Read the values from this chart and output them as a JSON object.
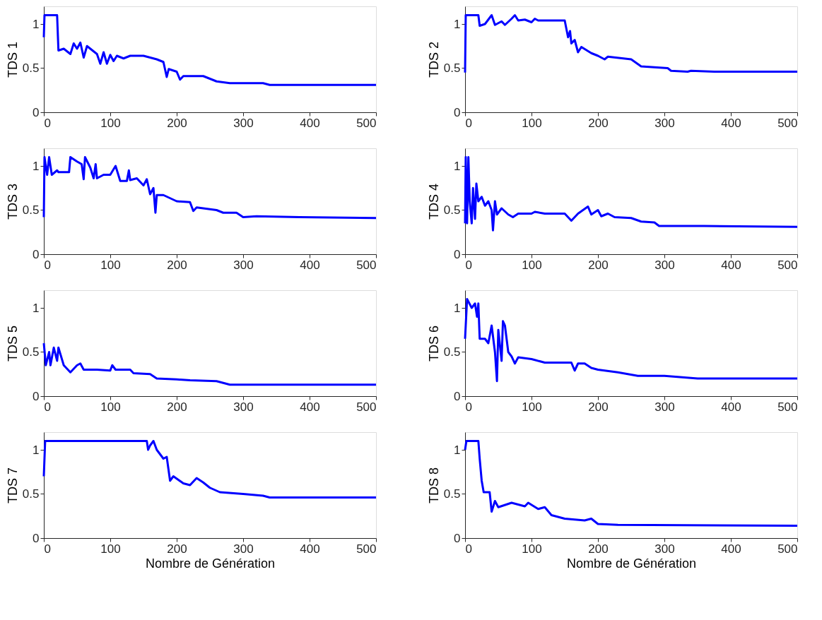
{
  "chart_data": [
    {
      "type": "line",
      "line_style": "solid",
      "ylabel": "TDS 1",
      "color": "#0000ff",
      "xlim": [
        0,
        500
      ],
      "ylim": [
        0,
        1.2
      ],
      "xticks": [
        0,
        100,
        200,
        300,
        400,
        500
      ],
      "yticks": [
        0,
        0.5,
        1
      ],
      "x": [
        0,
        1,
        20,
        22,
        30,
        40,
        45,
        50,
        55,
        60,
        65,
        70,
        80,
        85,
        90,
        95,
        100,
        105,
        110,
        120,
        130,
        150,
        160,
        170,
        180,
        185,
        188,
        200,
        205,
        210,
        240,
        260,
        280,
        330,
        340,
        500
      ],
      "values": [
        0.85,
        1.1,
        1.1,
        0.7,
        0.72,
        0.66,
        0.78,
        0.72,
        0.79,
        0.62,
        0.75,
        0.72,
        0.66,
        0.55,
        0.68,
        0.55,
        0.65,
        0.58,
        0.64,
        0.61,
        0.64,
        0.64,
        0.62,
        0.6,
        0.57,
        0.4,
        0.49,
        0.46,
        0.37,
        0.41,
        0.41,
        0.35,
        0.33,
        0.33,
        0.31,
        0.31
      ]
    },
    {
      "type": "line",
      "line_style": "solid",
      "ylabel": "TDS 2",
      "color": "#0000ff",
      "xlim": [
        0,
        500
      ],
      "ylim": [
        0,
        1.2
      ],
      "xticks": [
        0,
        100,
        200,
        300,
        400,
        500
      ],
      "yticks": [
        0,
        0.5,
        1
      ],
      "x": [
        0,
        1,
        20,
        22,
        30,
        40,
        45,
        55,
        60,
        70,
        75,
        80,
        90,
        100,
        105,
        110,
        150,
        155,
        158,
        160,
        165,
        170,
        175,
        190,
        200,
        210,
        215,
        250,
        265,
        305,
        310,
        335,
        340,
        375,
        500
      ],
      "values": [
        0.45,
        1.1,
        1.1,
        0.98,
        1.0,
        1.1,
        0.99,
        1.03,
        0.99,
        1.06,
        1.1,
        1.04,
        1.05,
        1.02,
        1.06,
        1.04,
        1.04,
        0.85,
        0.92,
        0.78,
        0.82,
        0.68,
        0.74,
        0.67,
        0.64,
        0.6,
        0.63,
        0.6,
        0.52,
        0.5,
        0.47,
        0.46,
        0.47,
        0.46,
        0.46
      ]
    },
    {
      "type": "line",
      "line_style": "solid",
      "ylabel": "TDS 3",
      "color": "#0000ff",
      "xlim": [
        0,
        500
      ],
      "ylim": [
        0,
        1.2
      ],
      "xticks": [
        0,
        100,
        200,
        300,
        400,
        500
      ],
      "yticks": [
        0,
        0.5,
        1
      ],
      "x": [
        0,
        1,
        5,
        8,
        12,
        20,
        22,
        38,
        40,
        50,
        57,
        60,
        62,
        70,
        75,
        78,
        80,
        90,
        100,
        108,
        115,
        125,
        128,
        130,
        140,
        150,
        155,
        160,
        165,
        168,
        170,
        180,
        200,
        220,
        225,
        230,
        260,
        270,
        290,
        300,
        320,
        385,
        500
      ],
      "values": [
        0.42,
        1.1,
        0.9,
        1.1,
        0.9,
        0.95,
        0.93,
        0.93,
        1.1,
        1.05,
        1.02,
        0.85,
        1.1,
        0.98,
        0.86,
        1.02,
        0.86,
        0.9,
        0.9,
        1.0,
        0.83,
        0.83,
        0.95,
        0.84,
        0.86,
        0.78,
        0.85,
        0.68,
        0.75,
        0.47,
        0.67,
        0.67,
        0.6,
        0.59,
        0.49,
        0.53,
        0.5,
        0.47,
        0.47,
        0.42,
        0.43,
        0.42,
        0.41
      ]
    },
    {
      "type": "line",
      "line_style": "solid",
      "ylabel": "TDS 4",
      "color": "#0000ff",
      "xlim": [
        0,
        500
      ],
      "ylim": [
        0,
        1.2
      ],
      "xticks": [
        0,
        100,
        200,
        300,
        400,
        500
      ],
      "yticks": [
        0,
        0.5,
        1
      ],
      "x": [
        0,
        1,
        3,
        5,
        7,
        10,
        12,
        15,
        17,
        20,
        25,
        30,
        35,
        40,
        42,
        45,
        48,
        55,
        65,
        72,
        80,
        100,
        105,
        120,
        150,
        160,
        170,
        185,
        190,
        200,
        205,
        215,
        225,
        250,
        265,
        285,
        292,
        360,
        500
      ],
      "values": [
        0.35,
        1.1,
        0.35,
        1.1,
        0.6,
        0.35,
        0.75,
        0.4,
        0.8,
        0.6,
        0.65,
        0.55,
        0.6,
        0.5,
        0.27,
        0.6,
        0.45,
        0.52,
        0.45,
        0.42,
        0.46,
        0.46,
        0.48,
        0.46,
        0.46,
        0.38,
        0.46,
        0.54,
        0.45,
        0.5,
        0.43,
        0.46,
        0.42,
        0.41,
        0.37,
        0.36,
        0.32,
        0.32,
        0.31
      ]
    },
    {
      "type": "line",
      "line_style": "solid",
      "ylabel": "TDS 5",
      "color": "#0000ff",
      "xlim": [
        0,
        500
      ],
      "ylim": [
        0,
        1.2
      ],
      "xticks": [
        0,
        100,
        200,
        300,
        400,
        500
      ],
      "yticks": [
        0,
        0.5,
        1
      ],
      "x": [
        0,
        3,
        8,
        10,
        15,
        20,
        22,
        30,
        40,
        50,
        55,
        60,
        80,
        100,
        103,
        108,
        130,
        135,
        160,
        170,
        200,
        220,
        260,
        280,
        500
      ],
      "values": [
        0.6,
        0.35,
        0.5,
        0.35,
        0.55,
        0.4,
        0.55,
        0.35,
        0.27,
        0.35,
        0.37,
        0.3,
        0.3,
        0.29,
        0.35,
        0.3,
        0.3,
        0.26,
        0.25,
        0.2,
        0.19,
        0.18,
        0.17,
        0.13,
        0.13
      ]
    },
    {
      "type": "line",
      "line_style": "solid",
      "ylabel": "TDS 6",
      "color": "#0000ff",
      "xlim": [
        0,
        500
      ],
      "ylim": [
        0,
        1.2
      ],
      "xticks": [
        0,
        100,
        200,
        300,
        400,
        500
      ],
      "yticks": [
        0,
        0.5,
        1
      ],
      "x": [
        0,
        3,
        10,
        15,
        18,
        20,
        22,
        30,
        35,
        40,
        45,
        48,
        50,
        55,
        57,
        60,
        65,
        70,
        75,
        80,
        100,
        120,
        160,
        165,
        170,
        180,
        190,
        200,
        230,
        260,
        300,
        350,
        500
      ],
      "values": [
        0.65,
        1.1,
        1.0,
        1.05,
        0.9,
        1.05,
        0.65,
        0.65,
        0.6,
        0.8,
        0.5,
        0.17,
        0.75,
        0.4,
        0.85,
        0.8,
        0.5,
        0.45,
        0.37,
        0.44,
        0.42,
        0.38,
        0.38,
        0.29,
        0.37,
        0.37,
        0.32,
        0.3,
        0.27,
        0.23,
        0.23,
        0.2,
        0.2
      ]
    },
    {
      "type": "line",
      "line_style": "solid",
      "ylabel": "TDS 7",
      "xlabel": "Nombre de Génération",
      "color": "#0000ff",
      "xlim": [
        0,
        500
      ],
      "ylim": [
        0,
        1.2
      ],
      "xticks": [
        0,
        100,
        200,
        300,
        400,
        500
      ],
      "yticks": [
        0,
        0.5,
        1
      ],
      "x": [
        0,
        2,
        155,
        157,
        160,
        165,
        170,
        180,
        185,
        190,
        195,
        210,
        220,
        230,
        240,
        250,
        265,
        300,
        330,
        340,
        500
      ],
      "values": [
        0.7,
        1.1,
        1.1,
        1.0,
        1.05,
        1.1,
        1.0,
        0.9,
        0.92,
        0.65,
        0.7,
        0.62,
        0.6,
        0.68,
        0.63,
        0.57,
        0.52,
        0.5,
        0.48,
        0.46,
        0.46
      ]
    },
    {
      "type": "line",
      "line_style": "solid",
      "ylabel": "TDS 8",
      "xlabel": "Nombre de Génération",
      "color": "#0000ff",
      "xlim": [
        0,
        500
      ],
      "ylim": [
        0,
        1.2
      ],
      "xticks": [
        0,
        100,
        200,
        300,
        400,
        500
      ],
      "yticks": [
        0,
        0.5,
        1
      ],
      "x": [
        0,
        2,
        20,
        22,
        25,
        28,
        37,
        40,
        45,
        50,
        70,
        90,
        95,
        110,
        120,
        130,
        150,
        180,
        190,
        200,
        230,
        500
      ],
      "values": [
        1.0,
        1.1,
        1.1,
        0.9,
        0.65,
        0.52,
        0.52,
        0.3,
        0.42,
        0.35,
        0.4,
        0.36,
        0.4,
        0.33,
        0.35,
        0.26,
        0.22,
        0.2,
        0.22,
        0.16,
        0.15,
        0.14
      ]
    }
  ]
}
